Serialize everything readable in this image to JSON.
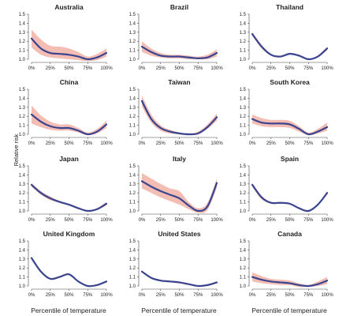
{
  "figure": {
    "ylabel": "Relative risk",
    "xlabel": "Percentile of temperature"
  },
  "colors": {
    "line": "#3a4590",
    "band": "#f3b6ac",
    "axis": "#444444"
  },
  "chart_data": [
    {
      "type": "line",
      "title": "Australia",
      "categories": [
        "0%",
        "25%",
        "50%",
        "75%",
        "100%"
      ],
      "x": [
        0,
        12.5,
        25,
        37.5,
        50,
        62.5,
        75,
        87.5,
        100
      ],
      "y": [
        1.23,
        1.12,
        1.07,
        1.06,
        1.05,
        1.03,
        1.0,
        1.02,
        1.07
      ],
      "lower": [
        1.13,
        1.05,
        1.02,
        1.01,
        1.0,
        0.99,
        0.98,
        0.99,
        1.03
      ],
      "upper": [
        1.33,
        1.22,
        1.15,
        1.14,
        1.12,
        1.08,
        1.03,
        1.06,
        1.12
      ],
      "ylim": [
        1.0,
        1.5
      ],
      "yticks": [
        "1.0",
        "1.1",
        "1.2",
        "1.3",
        "1.4",
        "1.5"
      ]
    },
    {
      "type": "line",
      "title": "Brazil",
      "categories": [
        "0%",
        "25%",
        "50%",
        "75%",
        "100%"
      ],
      "x": [
        0,
        12.5,
        25,
        37.5,
        50,
        62.5,
        75,
        87.5,
        100
      ],
      "y": [
        1.14,
        1.08,
        1.04,
        1.03,
        1.03,
        1.02,
        1.01,
        1.02,
        1.07
      ],
      "lower": [
        1.08,
        1.04,
        1.02,
        1.01,
        1.01,
        1.0,
        1.0,
        1.0,
        1.03
      ],
      "upper": [
        1.2,
        1.12,
        1.07,
        1.05,
        1.05,
        1.04,
        1.03,
        1.05,
        1.11
      ],
      "ylim": [
        1.0,
        1.5
      ],
      "yticks": [
        "1.0",
        "1.1",
        "1.2",
        "1.3",
        "1.4",
        "1.5"
      ]
    },
    {
      "type": "line",
      "title": "Thailand",
      "categories": [
        "0%",
        "25%",
        "50%",
        "75%",
        "100%"
      ],
      "x": [
        0,
        12.5,
        25,
        37.5,
        50,
        62.5,
        75,
        87.5,
        100
      ],
      "y": [
        1.28,
        1.14,
        1.05,
        1.03,
        1.06,
        1.04,
        1.0,
        1.03,
        1.12
      ],
      "lower": [
        1.26,
        1.12,
        1.04,
        1.02,
        1.05,
        1.03,
        1.0,
        1.02,
        1.1
      ],
      "upper": [
        1.3,
        1.16,
        1.06,
        1.04,
        1.07,
        1.05,
        1.01,
        1.04,
        1.14
      ],
      "ylim": [
        1.0,
        1.5
      ],
      "yticks": [
        "1.0",
        "1.1",
        "1.2",
        "1.3",
        "1.4",
        "1.5"
      ]
    },
    {
      "type": "line",
      "title": "China",
      "categories": [
        "0%",
        "25%",
        "50%",
        "75%",
        "100%"
      ],
      "x": [
        0,
        12.5,
        25,
        37.5,
        50,
        62.5,
        75,
        87.5,
        100
      ],
      "y": [
        1.22,
        1.14,
        1.09,
        1.07,
        1.07,
        1.04,
        1.0,
        1.03,
        1.11
      ],
      "lower": [
        1.12,
        1.08,
        1.05,
        1.04,
        1.04,
        1.02,
        0.99,
        1.01,
        1.07
      ],
      "upper": [
        1.32,
        1.21,
        1.14,
        1.11,
        1.11,
        1.07,
        1.02,
        1.06,
        1.15
      ],
      "ylim": [
        1.0,
        1.5
      ],
      "yticks": [
        "1.0",
        "1.1",
        "1.2",
        "1.3",
        "1.4",
        "1.5"
      ]
    },
    {
      "type": "line",
      "title": "Taiwan",
      "categories": [
        "0%",
        "25%",
        "50%",
        "75%",
        "100%"
      ],
      "x": [
        0,
        12.5,
        25,
        37.5,
        50,
        62.5,
        75,
        87.5,
        100
      ],
      "y": [
        1.37,
        1.17,
        1.07,
        1.03,
        1.01,
        1.0,
        1.01,
        1.08,
        1.19
      ],
      "lower": [
        1.31,
        1.13,
        1.04,
        1.01,
        1.0,
        0.99,
        1.0,
        1.06,
        1.15
      ],
      "upper": [
        1.43,
        1.22,
        1.1,
        1.05,
        1.02,
        1.01,
        1.03,
        1.11,
        1.23
      ],
      "ylim": [
        1.0,
        1.5
      ],
      "yticks": [
        "1.0",
        "1.1",
        "1.2",
        "1.3",
        "1.4",
        "1.5"
      ]
    },
    {
      "type": "line",
      "title": "South Korea",
      "categories": [
        "0%",
        "25%",
        "50%",
        "75%",
        "100%"
      ],
      "x": [
        0,
        12.5,
        25,
        37.5,
        50,
        62.5,
        75,
        87.5,
        100
      ],
      "y": [
        1.17,
        1.13,
        1.12,
        1.12,
        1.11,
        1.06,
        1.0,
        1.03,
        1.08
      ],
      "lower": [
        1.12,
        1.09,
        1.08,
        1.08,
        1.07,
        1.03,
        0.99,
        1.01,
        1.04
      ],
      "upper": [
        1.22,
        1.18,
        1.16,
        1.16,
        1.15,
        1.09,
        1.02,
        1.06,
        1.13
      ],
      "ylim": [
        1.0,
        1.5
      ],
      "yticks": [
        "1.0",
        "1.1",
        "1.2",
        "1.3",
        "1.4",
        "1.5"
      ]
    },
    {
      "type": "line",
      "title": "Japan",
      "categories": [
        "0%",
        "25%",
        "50%",
        "75%",
        "100%"
      ],
      "x": [
        0,
        12.5,
        25,
        37.5,
        50,
        62.5,
        75,
        87.5,
        100
      ],
      "y": [
        1.29,
        1.2,
        1.14,
        1.1,
        1.07,
        1.03,
        1.0,
        1.02,
        1.08
      ],
      "lower": [
        1.27,
        1.18,
        1.12,
        1.09,
        1.06,
        1.02,
        1.0,
        1.01,
        1.06
      ],
      "upper": [
        1.31,
        1.22,
        1.16,
        1.11,
        1.08,
        1.04,
        1.01,
        1.03,
        1.1
      ],
      "ylim": [
        1.0,
        1.5
      ],
      "yticks": [
        "1.0",
        "1.1",
        "1.2",
        "1.3",
        "1.4",
        "1.5"
      ]
    },
    {
      "type": "line",
      "title": "Italy",
      "categories": [
        "0%",
        "25%",
        "50%",
        "75%",
        "100%"
      ],
      "x": [
        0,
        12.5,
        25,
        37.5,
        50,
        62.5,
        75,
        87.5,
        100
      ],
      "y": [
        1.33,
        1.27,
        1.22,
        1.18,
        1.14,
        1.06,
        1.0,
        1.05,
        1.31
      ],
      "lower": [
        1.25,
        1.2,
        1.15,
        1.11,
        1.07,
        1.02,
        0.98,
        1.01,
        1.26
      ],
      "upper": [
        1.42,
        1.36,
        1.3,
        1.25,
        1.22,
        1.1,
        1.03,
        1.09,
        1.36
      ],
      "ylim": [
        1.0,
        1.5
      ],
      "yticks": [
        "1.0",
        "1.1",
        "1.2",
        "1.3",
        "1.4",
        "1.5"
      ]
    },
    {
      "type": "line",
      "title": "Spain",
      "categories": [
        "0%",
        "25%",
        "50%",
        "75%",
        "100%"
      ],
      "x": [
        0,
        12.5,
        25,
        37.5,
        50,
        62.5,
        75,
        87.5,
        100
      ],
      "y": [
        1.29,
        1.15,
        1.09,
        1.09,
        1.08,
        1.03,
        1.0,
        1.07,
        1.2
      ],
      "lower": [
        1.27,
        1.13,
        1.08,
        1.08,
        1.07,
        1.02,
        1.0,
        1.06,
        1.18
      ],
      "upper": [
        1.31,
        1.17,
        1.1,
        1.1,
        1.09,
        1.04,
        1.01,
        1.08,
        1.22
      ],
      "ylim": [
        1.0,
        1.5
      ],
      "yticks": [
        "1.0",
        "1.1",
        "1.2",
        "1.3",
        "1.4",
        "1.5"
      ]
    },
    {
      "type": "line",
      "title": "United Kingdom",
      "categories": [
        "0%",
        "25%",
        "50%",
        "75%",
        "100%"
      ],
      "x": [
        0,
        12.5,
        25,
        37.5,
        50,
        62.5,
        75,
        87.5,
        100
      ],
      "y": [
        1.31,
        1.16,
        1.08,
        1.1,
        1.13,
        1.05,
        1.0,
        1.01,
        1.05
      ],
      "lower": [
        1.3,
        1.15,
        1.07,
        1.09,
        1.12,
        1.04,
        1.0,
        1.0,
        1.04
      ],
      "upper": [
        1.32,
        1.17,
        1.09,
        1.11,
        1.14,
        1.06,
        1.0,
        1.02,
        1.06
      ],
      "ylim": [
        1.0,
        1.5
      ],
      "yticks": [
        "1.0",
        "1.1",
        "1.2",
        "1.3",
        "1.4",
        "1.5"
      ]
    },
    {
      "type": "line",
      "title": "United States",
      "categories": [
        "0%",
        "25%",
        "50%",
        "75%",
        "100%"
      ],
      "x": [
        0,
        12.5,
        25,
        37.5,
        50,
        62.5,
        75,
        87.5,
        100
      ],
      "y": [
        1.16,
        1.09,
        1.06,
        1.05,
        1.04,
        1.02,
        1.0,
        1.01,
        1.04
      ],
      "lower": [
        1.15,
        1.08,
        1.05,
        1.04,
        1.03,
        1.01,
        1.0,
        1.0,
        1.03
      ],
      "upper": [
        1.17,
        1.1,
        1.07,
        1.06,
        1.05,
        1.03,
        1.0,
        1.02,
        1.05
      ],
      "ylim": [
        1.0,
        1.5
      ],
      "yticks": [
        "1.0",
        "1.1",
        "1.2",
        "1.3",
        "1.4",
        "1.5"
      ]
    },
    {
      "type": "line",
      "title": "Canada",
      "categories": [
        "0%",
        "25%",
        "50%",
        "75%",
        "100%"
      ],
      "x": [
        0,
        12.5,
        25,
        37.5,
        50,
        62.5,
        75,
        87.5,
        100
      ],
      "y": [
        1.1,
        1.07,
        1.05,
        1.04,
        1.03,
        1.01,
        1.0,
        1.02,
        1.06
      ],
      "lower": [
        1.05,
        1.03,
        1.02,
        1.01,
        1.01,
        0.99,
        0.99,
        1.0,
        1.02
      ],
      "upper": [
        1.15,
        1.11,
        1.08,
        1.07,
        1.06,
        1.03,
        1.01,
        1.05,
        1.1
      ],
      "ylim": [
        1.0,
        1.5
      ],
      "yticks": [
        "1.0",
        "1.1",
        "1.2",
        "1.3",
        "1.4",
        "1.5"
      ]
    }
  ]
}
